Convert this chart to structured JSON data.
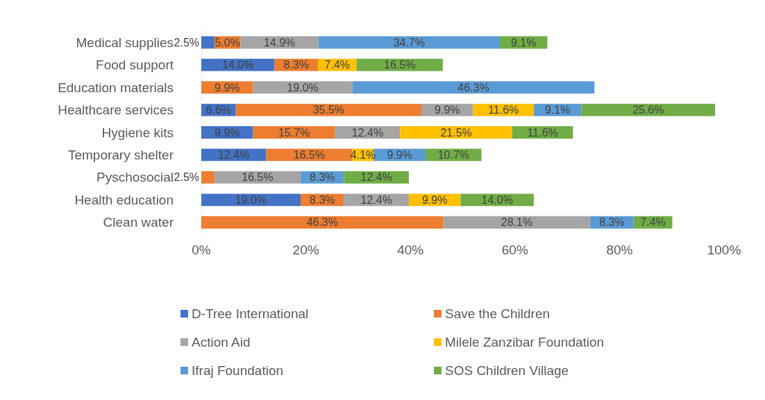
{
  "chart_data": {
    "type": "bar",
    "orientation": "horizontal",
    "stacked": true,
    "categories": [
      "Medical supplies",
      "Food support",
      "Education materials",
      "Healthcare services",
      "Hygiene kits",
      "Temporary shelter",
      "Pyschosocial",
      "Health education",
      "Clean water"
    ],
    "series": [
      {
        "name": "D-Tree International",
        "color": "#4472c4",
        "values": [
          2.5,
          14.0,
          null,
          6.6,
          9.9,
          12.4,
          null,
          19.0,
          null
        ],
        "value_labels": [
          "2.5%",
          "14.0%",
          null,
          "6.6%",
          "9.9%",
          "12.4%",
          null,
          "19.0%",
          null
        ]
      },
      {
        "name": "Save the Children",
        "color": "#ed7d31",
        "values": [
          5.0,
          8.3,
          9.9,
          35.5,
          15.7,
          16.5,
          2.5,
          8.3,
          46.3
        ],
        "value_labels": [
          "5.0%",
          "8.3%",
          "9.9%",
          "35.5%",
          "15.7%",
          "16.5%",
          "2.5%",
          "8.3%",
          "46.3%"
        ]
      },
      {
        "name": "Action Aid",
        "color": "#a5a5a5",
        "values": [
          14.9,
          null,
          19.0,
          9.9,
          12.4,
          null,
          16.5,
          12.4,
          28.1
        ],
        "value_labels": [
          "14.9%",
          null,
          "19.0%",
          "9.9%",
          "12.4%",
          null,
          "16.5%",
          "12.4%",
          "28.1%"
        ]
      },
      {
        "name": "Milele Zanzibar Foundation",
        "color": "#ffc000",
        "values": [
          null,
          7.4,
          null,
          11.6,
          21.5,
          4.1,
          null,
          9.9,
          null
        ],
        "value_labels": [
          null,
          "7.4%",
          null,
          "11.6%",
          "21.5%",
          "4.1%",
          null,
          "9.9%",
          null
        ]
      },
      {
        "name": "Ifraj Foundation",
        "color": "#5b9bd5",
        "values": [
          34.7,
          null,
          46.3,
          9.1,
          null,
          9.9,
          8.3,
          null,
          8.3
        ],
        "value_labels": [
          "34.7%",
          null,
          "46.3%",
          "9.1%",
          null,
          "9.9%",
          "8.3%",
          null,
          "8.3%"
        ]
      },
      {
        "name": "SOS Children Village",
        "color": "#70ad47",
        "values": [
          9.1,
          16.5,
          null,
          25.6,
          11.6,
          10.7,
          12.4,
          14.0,
          7.4
        ],
        "value_labels": [
          "9.1%",
          "16.5%",
          null,
          "25.6%",
          "11.6%",
          "10.7%",
          "12.4%",
          "14.0%",
          "7.4%"
        ]
      }
    ],
    "xlim": [
      0,
      100
    ],
    "xticks": [
      {
        "value": 0,
        "label": "0%"
      },
      {
        "value": 20,
        "label": "20%"
      },
      {
        "value": 40,
        "label": "40%"
      },
      {
        "value": 60,
        "label": "60%"
      },
      {
        "value": 80,
        "label": "80%"
      },
      {
        "value": 100,
        "label": "100%"
      }
    ],
    "legend": "bottom",
    "grid": false
  }
}
